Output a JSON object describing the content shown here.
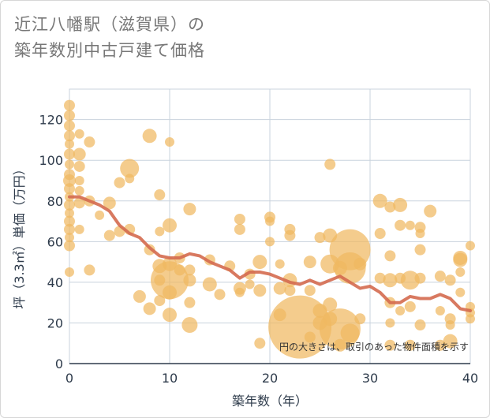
{
  "title": {
    "line1": "近江八幡駅（滋賀県）の",
    "line2": "築年数別中古戸建て価格"
  },
  "chart_data": {
    "type": "scatter",
    "title": "近江八幡駅（滋賀県）の築年数別中古戸建て価格",
    "xlabel": "築年数（年）",
    "ylabel": "坪（3.3㎡）単価（万円）",
    "xlim": [
      0,
      40
    ],
    "ylim": [
      0,
      135
    ],
    "xticks": [
      0,
      10,
      20,
      30,
      40
    ],
    "yticks": [
      0,
      20,
      40,
      60,
      80,
      100,
      120
    ],
    "grid": true,
    "note": "円の大きさは、取引のあった物件面積を示す",
    "colors": {
      "bubble": "#f0b961",
      "line": "#d46a4f",
      "grid": "#c9d3dd"
    },
    "points": [
      {
        "x": 0,
        "y": 127,
        "s": 7
      },
      {
        "x": 0,
        "y": 122,
        "s": 7
      },
      {
        "x": 0,
        "y": 117,
        "s": 7
      },
      {
        "x": 0,
        "y": 112,
        "s": 7
      },
      {
        "x": 0,
        "y": 108,
        "s": 6
      },
      {
        "x": 0,
        "y": 103,
        "s": 7
      },
      {
        "x": 0,
        "y": 98,
        "s": 6
      },
      {
        "x": 0,
        "y": 93,
        "s": 7
      },
      {
        "x": 0,
        "y": 90,
        "s": 8
      },
      {
        "x": 0,
        "y": 86,
        "s": 7
      },
      {
        "x": 0,
        "y": 82,
        "s": 6
      },
      {
        "x": 0,
        "y": 78,
        "s": 7
      },
      {
        "x": 0,
        "y": 74,
        "s": 6
      },
      {
        "x": 0,
        "y": 70,
        "s": 7
      },
      {
        "x": 0,
        "y": 66,
        "s": 7
      },
      {
        "x": 0,
        "y": 62,
        "s": 6
      },
      {
        "x": 0,
        "y": 58,
        "s": 7
      },
      {
        "x": 0,
        "y": 45,
        "s": 6
      },
      {
        "x": 1,
        "y": 113,
        "s": 6
      },
      {
        "x": 1,
        "y": 103,
        "s": 8
      },
      {
        "x": 1,
        "y": 97,
        "s": 7
      },
      {
        "x": 1,
        "y": 90,
        "s": 6
      },
      {
        "x": 1,
        "y": 85,
        "s": 6
      },
      {
        "x": 1,
        "y": 79,
        "s": 7
      },
      {
        "x": 1,
        "y": 66,
        "s": 6
      },
      {
        "x": 2,
        "y": 109,
        "s": 7
      },
      {
        "x": 2,
        "y": 80,
        "s": 7
      },
      {
        "x": 2,
        "y": 46,
        "s": 7
      },
      {
        "x": 3,
        "y": 73,
        "s": 6
      },
      {
        "x": 4,
        "y": 79,
        "s": 8
      },
      {
        "x": 4,
        "y": 63,
        "s": 7
      },
      {
        "x": 5,
        "y": 89,
        "s": 7
      },
      {
        "x": 5,
        "y": 65,
        "s": 7
      },
      {
        "x": 6,
        "y": 96,
        "s": 12
      },
      {
        "x": 6,
        "y": 91,
        "s": 6
      },
      {
        "x": 6,
        "y": 66,
        "s": 7
      },
      {
        "x": 7,
        "y": 33,
        "s": 8
      },
      {
        "x": 8,
        "y": 112,
        "s": 9
      },
      {
        "x": 8,
        "y": 56,
        "s": 7
      },
      {
        "x": 8,
        "y": 27,
        "s": 8
      },
      {
        "x": 9,
        "y": 83,
        "s": 7
      },
      {
        "x": 9,
        "y": 65,
        "s": 6
      },
      {
        "x": 9,
        "y": 48,
        "s": 9
      },
      {
        "x": 9,
        "y": 41,
        "s": 7
      },
      {
        "x": 9,
        "y": 31,
        "s": 7
      },
      {
        "x": 10,
        "y": 109,
        "s": 6
      },
      {
        "x": 10,
        "y": 68,
        "s": 9
      },
      {
        "x": 10,
        "y": 41,
        "s": 24
      },
      {
        "x": 10,
        "y": 49,
        "s": 9
      },
      {
        "x": 10,
        "y": 35,
        "s": 9
      },
      {
        "x": 10,
        "y": 24,
        "s": 9
      },
      {
        "x": 11,
        "y": 52,
        "s": 7
      },
      {
        "x": 11,
        "y": 46,
        "s": 7
      },
      {
        "x": 12,
        "y": 76,
        "s": 8
      },
      {
        "x": 12,
        "y": 46,
        "s": 7
      },
      {
        "x": 12,
        "y": 41,
        "s": 8
      },
      {
        "x": 12,
        "y": 30,
        "s": 7
      },
      {
        "x": 12,
        "y": 19,
        "s": 10
      },
      {
        "x": 14,
        "y": 51,
        "s": 7
      },
      {
        "x": 14,
        "y": 39,
        "s": 9
      },
      {
        "x": 15,
        "y": 34,
        "s": 7
      },
      {
        "x": 16,
        "y": 48,
        "s": 7
      },
      {
        "x": 17,
        "y": 71,
        "s": 7
      },
      {
        "x": 17,
        "y": 66,
        "s": 7
      },
      {
        "x": 17,
        "y": 37,
        "s": 8
      },
      {
        "x": 17,
        "y": 35,
        "s": 6
      },
      {
        "x": 18,
        "y": 44,
        "s": 7
      },
      {
        "x": 18,
        "y": 39,
        "s": 6
      },
      {
        "x": 19,
        "y": 50,
        "s": 9
      },
      {
        "x": 19,
        "y": 36,
        "s": 8
      },
      {
        "x": 19,
        "y": 10,
        "s": 7
      },
      {
        "x": 20,
        "y": 72,
        "s": 7
      },
      {
        "x": 20,
        "y": 70,
        "s": 6
      },
      {
        "x": 20,
        "y": 60,
        "s": 6
      },
      {
        "x": 21,
        "y": 49,
        "s": 6
      },
      {
        "x": 21,
        "y": 37,
        "s": 8
      },
      {
        "x": 21,
        "y": 24,
        "s": 8
      },
      {
        "x": 22,
        "y": 66,
        "s": 7
      },
      {
        "x": 22,
        "y": 63,
        "s": 7
      },
      {
        "x": 22,
        "y": 41,
        "s": 9
      },
      {
        "x": 22,
        "y": 36,
        "s": 7
      },
      {
        "x": 23,
        "y": 18,
        "s": 40
      },
      {
        "x": 24,
        "y": 50,
        "s": 8
      },
      {
        "x": 24,
        "y": 36,
        "s": 7
      },
      {
        "x": 24,
        "y": 13,
        "s": 7
      },
      {
        "x": 25,
        "y": 62,
        "s": 7
      },
      {
        "x": 25,
        "y": 26,
        "s": 9
      },
      {
        "x": 25,
        "y": 20,
        "s": 9
      },
      {
        "x": 26,
        "y": 98,
        "s": 7
      },
      {
        "x": 26,
        "y": 63,
        "s": 9
      },
      {
        "x": 26,
        "y": 49,
        "s": 12
      },
      {
        "x": 26,
        "y": 29,
        "s": 9
      },
      {
        "x": 26,
        "y": 22,
        "s": 9
      },
      {
        "x": 27,
        "y": 47,
        "s": 9
      },
      {
        "x": 27,
        "y": 17,
        "s": 26
      },
      {
        "x": 27,
        "y": 9,
        "s": 8
      },
      {
        "x": 28,
        "y": 56,
        "s": 26
      },
      {
        "x": 28,
        "y": 47,
        "s": 20
      },
      {
        "x": 28,
        "y": 15,
        "s": 12
      },
      {
        "x": 29,
        "y": 49,
        "s": 8
      },
      {
        "x": 29,
        "y": 22,
        "s": 7
      },
      {
        "x": 31,
        "y": 80,
        "s": 9
      },
      {
        "x": 31,
        "y": 64,
        "s": 7
      },
      {
        "x": 31,
        "y": 42,
        "s": 7
      },
      {
        "x": 32,
        "y": 77,
        "s": 7
      },
      {
        "x": 32,
        "y": 53,
        "s": 7
      },
      {
        "x": 32,
        "y": 41,
        "s": 9
      },
      {
        "x": 32,
        "y": 30,
        "s": 7
      },
      {
        "x": 32,
        "y": 20,
        "s": 6
      },
      {
        "x": 32,
        "y": 9,
        "s": 7
      },
      {
        "x": 33,
        "y": 78,
        "s": 9
      },
      {
        "x": 33,
        "y": 68,
        "s": 7
      },
      {
        "x": 33,
        "y": 42,
        "s": 7
      },
      {
        "x": 33,
        "y": 26,
        "s": 6
      },
      {
        "x": 34,
        "y": 68,
        "s": 6
      },
      {
        "x": 34,
        "y": 41,
        "s": 12
      },
      {
        "x": 34,
        "y": 28,
        "s": 7
      },
      {
        "x": 34,
        "y": 9,
        "s": 7
      },
      {
        "x": 35,
        "y": 67,
        "s": 7
      },
      {
        "x": 35,
        "y": 64,
        "s": 6
      },
      {
        "x": 35,
        "y": 56,
        "s": 7
      },
      {
        "x": 35,
        "y": 42,
        "s": 7
      },
      {
        "x": 35,
        "y": 19,
        "s": 7
      },
      {
        "x": 36,
        "y": 75,
        "s": 8
      },
      {
        "x": 37,
        "y": 43,
        "s": 7
      },
      {
        "x": 37,
        "y": 9,
        "s": 7
      },
      {
        "x": 37,
        "y": 26,
        "s": 6
      },
      {
        "x": 38,
        "y": 41,
        "s": 7
      },
      {
        "x": 38,
        "y": 22,
        "s": 7
      },
      {
        "x": 38,
        "y": 19,
        "s": 6
      },
      {
        "x": 38,
        "y": 11,
        "s": 9
      },
      {
        "x": 39,
        "y": 52,
        "s": 9
      },
      {
        "x": 39,
        "y": 51,
        "s": 9
      },
      {
        "x": 39,
        "y": 45,
        "s": 6
      },
      {
        "x": 39,
        "y": 35,
        "s": 6
      },
      {
        "x": 40,
        "y": 58,
        "s": 6
      },
      {
        "x": 40,
        "y": 28,
        "s": 6
      },
      {
        "x": 40,
        "y": 25,
        "s": 6
      },
      {
        "x": 40,
        "y": 22,
        "s": 6
      }
    ],
    "trend": [
      {
        "x": 0,
        "y": 82
      },
      {
        "x": 1,
        "y": 82
      },
      {
        "x": 2,
        "y": 80
      },
      {
        "x": 3,
        "y": 78
      },
      {
        "x": 4,
        "y": 75
      },
      {
        "x": 5,
        "y": 68
      },
      {
        "x": 6,
        "y": 64
      },
      {
        "x": 7,
        "y": 62
      },
      {
        "x": 8,
        "y": 57
      },
      {
        "x": 9,
        "y": 53
      },
      {
        "x": 10,
        "y": 52
      },
      {
        "x": 11,
        "y": 52
      },
      {
        "x": 12,
        "y": 54
      },
      {
        "x": 13,
        "y": 53
      },
      {
        "x": 14,
        "y": 50
      },
      {
        "x": 15,
        "y": 48
      },
      {
        "x": 16,
        "y": 46
      },
      {
        "x": 17,
        "y": 42
      },
      {
        "x": 18,
        "y": 45
      },
      {
        "x": 19,
        "y": 45
      },
      {
        "x": 20,
        "y": 44
      },
      {
        "x": 21,
        "y": 42
      },
      {
        "x": 22,
        "y": 40
      },
      {
        "x": 23,
        "y": 39
      },
      {
        "x": 24,
        "y": 41
      },
      {
        "x": 25,
        "y": 39
      },
      {
        "x": 26,
        "y": 41
      },
      {
        "x": 27,
        "y": 43
      },
      {
        "x": 28,
        "y": 40
      },
      {
        "x": 29,
        "y": 37
      },
      {
        "x": 30,
        "y": 38
      },
      {
        "x": 31,
        "y": 35
      },
      {
        "x": 32,
        "y": 30
      },
      {
        "x": 33,
        "y": 30
      },
      {
        "x": 34,
        "y": 33
      },
      {
        "x": 35,
        "y": 32
      },
      {
        "x": 36,
        "y": 32
      },
      {
        "x": 37,
        "y": 34
      },
      {
        "x": 38,
        "y": 32
      },
      {
        "x": 39,
        "y": 27
      },
      {
        "x": 40,
        "y": 26
      }
    ]
  }
}
